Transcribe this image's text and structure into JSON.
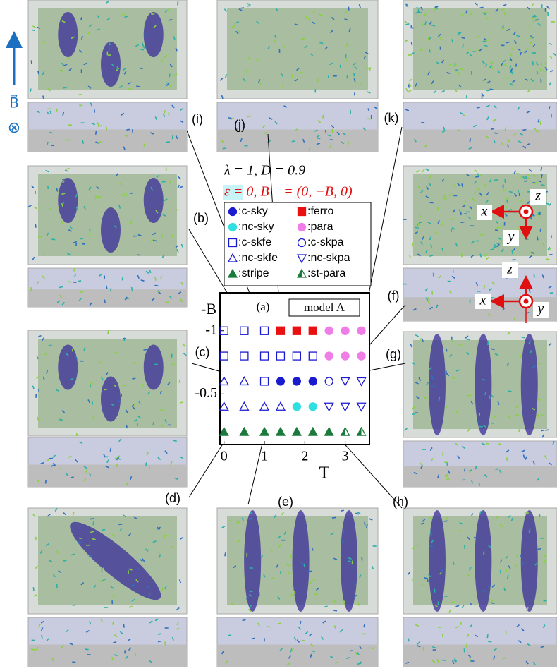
{
  "chart_data": {
    "type": "scatter",
    "annotations": [
      "λ = 1, D = 0.9",
      "ε = 0, B⃗ = (0, −B, 0)",
      "model A",
      "(a)"
    ],
    "xlabel": "T",
    "ylabel": "-B",
    "xlim": [
      -0.1,
      3.6
    ],
    "ylim": [
      -0.1,
      -1.3
    ],
    "xticks": [
      0,
      1,
      2,
      3
    ],
    "yticks": [
      -1,
      -0.5
    ],
    "series": [
      {
        "name": ":c-sky",
        "color": "#1a1ad0",
        "marker": "circle",
        "filled": true,
        "x": [
          1.4,
          1.8,
          2.2
        ],
        "y": [
          -0.6,
          -0.6,
          -0.6
        ]
      },
      {
        "name": ":ferro",
        "color": "#e81010",
        "marker": "square",
        "filled": true,
        "x": [
          1.4,
          1.8,
          2.2
        ],
        "y": [
          -1,
          -1,
          -1
        ]
      },
      {
        "name": ":nc-sky",
        "color": "#30e0e0",
        "marker": "circle",
        "filled": true,
        "x": [
          1.8,
          2.2
        ],
        "y": [
          -0.4,
          -0.4
        ]
      },
      {
        "name": ":para",
        "color": "#f07ce8",
        "marker": "circle",
        "filled": true,
        "x": [
          2.6,
          3,
          3.4,
          2.6,
          3,
          3.4
        ],
        "y": [
          -1,
          -1,
          -1,
          -0.8,
          -0.8,
          -0.8
        ]
      },
      {
        "name": ":c-skfe",
        "color": "#1a1ad0",
        "marker": "square",
        "filled": false,
        "x": [
          0,
          0.5,
          1,
          0,
          0.5,
          1,
          1.4,
          1.8,
          2.2,
          1
        ],
        "y": [
          -1,
          -1,
          -1,
          -0.8,
          -0.8,
          -0.8,
          -0.8,
          -0.8,
          -0.8,
          -0.6
        ]
      },
      {
        "name": ":c-skpa",
        "color": "#1a1ad0",
        "marker": "circle",
        "filled": false,
        "x": [
          2.6
        ],
        "y": [
          -0.6
        ]
      },
      {
        "name": ":nc-skfe",
        "color": "#1a1ad0",
        "marker": "triangle-up",
        "filled": false,
        "x": [
          0,
          0.5,
          0,
          0.5,
          1,
          1.4
        ],
        "y": [
          -0.6,
          -0.6,
          -0.4,
          -0.4,
          -0.4,
          -0.4
        ]
      },
      {
        "name": ":nc-skpa",
        "color": "#1a1ad0",
        "marker": "triangle-down",
        "filled": false,
        "x": [
          3,
          3.4,
          2.6,
          3,
          3.4
        ],
        "y": [
          -0.6,
          -0.6,
          -0.4,
          -0.4,
          -0.4
        ]
      },
      {
        "name": ":stripe",
        "color": "#1a7a3c",
        "marker": "triangle-up",
        "filled": true,
        "x": [
          0,
          0.5,
          1,
          1.4,
          1.8,
          2.2,
          2.6
        ],
        "y": [
          -0.2,
          -0.2,
          -0.2,
          -0.2,
          -0.2,
          -0.2,
          -0.2
        ]
      },
      {
        "name": ":st-para",
        "color": "#1a7a3c",
        "marker": "triangle-half",
        "filled": true,
        "x": [
          3,
          3.4
        ],
        "y": [
          -0.2,
          -0.2
        ]
      }
    ]
  },
  "figure": {
    "panel_labels": [
      "(i)",
      "(j)",
      "(k)",
      "(b)",
      "(c)",
      "(f)",
      "(g)",
      "(d)",
      "(e)",
      "(h)"
    ],
    "field_symbol": "B⃗",
    "field_direction": "⊗",
    "axes_labels": [
      "x",
      "y",
      "z",
      "x",
      "y",
      "z"
    ]
  }
}
